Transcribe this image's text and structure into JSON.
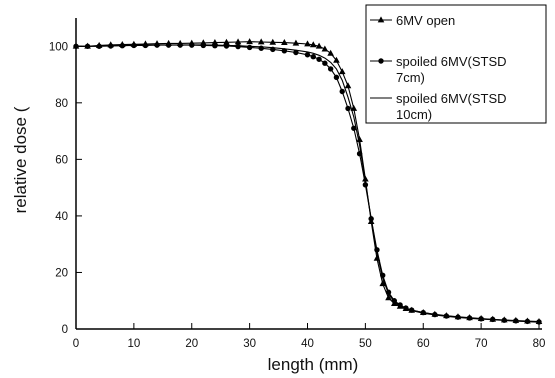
{
  "chart_data": {
    "type": "line",
    "xlabel": "length (mm)",
    "ylabel": "relative dose (%)",
    "ylabel_visible": "relative dose (",
    "xlim": [
      0,
      80
    ],
    "ylim": [
      0,
      110
    ],
    "xticks": [
      0,
      10,
      20,
      30,
      40,
      50,
      60,
      70,
      80
    ],
    "yticks": [
      0,
      20,
      40,
      60,
      80,
      100
    ],
    "grid": false,
    "legend_position": "top-right",
    "series": [
      {
        "name": "6MV open",
        "marker": "triangle",
        "color": "#000000",
        "x": [
          0,
          2,
          4,
          6,
          8,
          10,
          12,
          14,
          16,
          18,
          20,
          22,
          24,
          26,
          28,
          30,
          32,
          34,
          36,
          38,
          40,
          41,
          42,
          43,
          44,
          45,
          46,
          47,
          48,
          49,
          50,
          51,
          52,
          53,
          54,
          55,
          56,
          57,
          58,
          60,
          62,
          64,
          66,
          68,
          70,
          72,
          74,
          76,
          78,
          80
        ],
        "y": [
          100,
          100,
          100.3,
          100.5,
          100.6,
          100.7,
          100.8,
          100.9,
          101,
          101,
          101.1,
          101.2,
          101.3,
          101.4,
          101.5,
          101.6,
          101.5,
          101.4,
          101.3,
          101.1,
          100.8,
          100.5,
          100,
          99,
          97.5,
          95,
          91,
          86,
          78,
          67,
          53,
          38,
          25,
          16,
          11,
          9,
          8,
          7.2,
          6.6,
          5.8,
          5.2,
          4.7,
          4.3,
          4,
          3.7,
          3.4,
          3.2,
          3,
          2.8,
          2.6
        ]
      },
      {
        "name": "spoiled 6MV(STSD 7cm)",
        "marker": "circle",
        "color": "#000000",
        "x": [
          0,
          2,
          4,
          6,
          8,
          10,
          12,
          14,
          16,
          18,
          20,
          22,
          24,
          26,
          28,
          30,
          32,
          34,
          36,
          38,
          40,
          41,
          42,
          43,
          44,
          45,
          46,
          47,
          48,
          49,
          50,
          51,
          52,
          53,
          54,
          55,
          56,
          57,
          58,
          60,
          62,
          64,
          66,
          68,
          70,
          72,
          74,
          76,
          78,
          80
        ],
        "y": [
          100,
          100,
          100,
          100.1,
          100.2,
          100.3,
          100.3,
          100.4,
          100.4,
          100.4,
          100.4,
          100.3,
          100.2,
          100.1,
          99.9,
          99.6,
          99.3,
          98.9,
          98.4,
          97.8,
          97,
          96.3,
          95.4,
          94,
          92,
          89,
          84,
          78,
          71,
          62,
          51,
          39,
          28,
          19,
          13,
          10,
          8.5,
          7.4,
          6.7,
          5.8,
          5.1,
          4.6,
          4.2,
          3.9,
          3.6,
          3.4,
          3.1,
          2.9,
          2.7,
          2.5
        ]
      },
      {
        "name": "spoiled 6MV(STSD 10cm)",
        "marker": "none",
        "color": "#000000",
        "x": [
          0,
          2,
          4,
          6,
          8,
          10,
          12,
          14,
          16,
          18,
          20,
          22,
          24,
          26,
          28,
          30,
          32,
          34,
          36,
          38,
          40,
          41,
          42,
          43,
          44,
          45,
          46,
          47,
          48,
          49,
          50,
          51,
          52,
          53,
          54,
          55,
          56,
          57,
          58,
          60,
          62,
          64,
          66,
          68,
          70,
          72,
          74,
          76,
          78,
          80
        ],
        "y": [
          100,
          100,
          100.1,
          100.2,
          100.3,
          100.4,
          100.4,
          100.5,
          100.5,
          100.5,
          100.5,
          100.5,
          100.4,
          100.3,
          100.2,
          100,
          99.8,
          99.5,
          99.1,
          98.6,
          98,
          97.5,
          96.8,
          95.8,
          94.3,
          92,
          88,
          82,
          75,
          65,
          52,
          39,
          27,
          18,
          12.5,
          9.6,
          8.2,
          7.2,
          6.5,
          5.6,
          5,
          4.5,
          4.1,
          3.8,
          3.5,
          3.3,
          3,
          2.8,
          2.6,
          2.4
        ]
      }
    ]
  },
  "legend": {
    "entries": [
      {
        "lines": [
          "6MV open"
        ]
      },
      {
        "lines": [
          "spoiled 6MV(STSD",
          "7cm)"
        ]
      },
      {
        "lines": [
          "spoiled 6MV(STSD",
          "10cm)"
        ]
      }
    ]
  }
}
